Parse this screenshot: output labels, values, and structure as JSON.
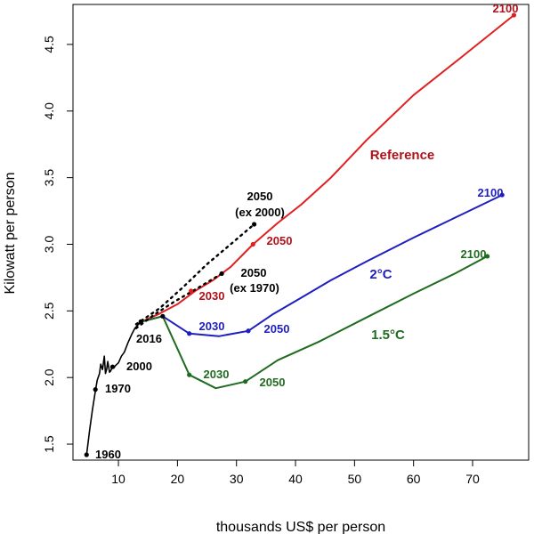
{
  "chart_data": {
    "type": "line",
    "xlabel": "thousands US$ per person",
    "ylabel": "Kilowatt per person",
    "xlim": [
      2.3,
      79.5
    ],
    "ylim": [
      1.38,
      4.8
    ],
    "xticks": [
      10,
      20,
      30,
      40,
      50,
      60,
      70
    ],
    "yticks": [
      1.5,
      2.0,
      2.5,
      3.0,
      3.5,
      4.0,
      4.5
    ],
    "xtick_labels": [
      "10",
      "20",
      "30",
      "40",
      "50",
      "60",
      "70"
    ],
    "ytick_labels": [
      "1.5",
      "2.0",
      "2.5",
      "3.0",
      "3.5",
      "4.0",
      "4.5"
    ],
    "grid": false,
    "legend": "none",
    "series": [
      {
        "key": "historical",
        "color": "#000000",
        "x": [
          4.6,
          5.1,
          5.6,
          6.1,
          6.4,
          6.8,
          7.0,
          7.3,
          7.6,
          7.8,
          8.0,
          8.2,
          8.5,
          8.7,
          9.0,
          9.2,
          9.5,
          10.0,
          10.5,
          11.0,
          11.6,
          12.2,
          12.8,
          13.4,
          14.0
        ],
        "y": [
          1.42,
          1.6,
          1.76,
          1.9,
          1.98,
          2.03,
          2.1,
          2.06,
          2.16,
          2.03,
          2.06,
          2.12,
          2.04,
          2.05,
          2.08,
          2.07,
          2.09,
          2.11,
          2.16,
          2.19,
          2.26,
          2.32,
          2.37,
          2.4,
          2.42
        ]
      },
      {
        "key": "reference",
        "name": "Reference",
        "color": "#e0201f",
        "x": [
          14.0,
          17.0,
          20.0,
          23.0,
          26.0,
          29.0,
          32.8,
          37.0,
          41.0,
          46.0,
          52.0,
          60.0,
          68.0,
          77.0
        ],
        "y": [
          2.42,
          2.48,
          2.55,
          2.65,
          2.73,
          2.83,
          3.0,
          3.16,
          3.3,
          3.5,
          3.78,
          4.12,
          4.4,
          4.72
        ]
      },
      {
        "key": "two_degree",
        "name": "2°C",
        "color": "#1f1fbf",
        "x": [
          14.0,
          17.5,
          22.0,
          27.0,
          32.0,
          36.0,
          41.0,
          46.0,
          52.0,
          60.0,
          68.0,
          75.0
        ],
        "y": [
          2.42,
          2.46,
          2.33,
          2.31,
          2.35,
          2.47,
          2.6,
          2.73,
          2.87,
          3.05,
          3.22,
          3.37
        ]
      },
      {
        "key": "one_point_five",
        "name": "1.5°C",
        "color": "#1f6b1f",
        "x": [
          14.0,
          17.5,
          22.0,
          26.5,
          31.5,
          37.0,
          44.0,
          52.0,
          60.0,
          67.0,
          72.5
        ],
        "y": [
          2.42,
          2.46,
          2.02,
          1.92,
          1.97,
          2.13,
          2.27,
          2.45,
          2.63,
          2.78,
          2.91
        ]
      },
      {
        "key": "ex2000",
        "color": "#000000",
        "dashed": true,
        "x": [
          13.0,
          17.0,
          21.0,
          25.0,
          29.0,
          33.0
        ],
        "y": [
          2.4,
          2.52,
          2.68,
          2.85,
          3.0,
          3.15
        ]
      },
      {
        "key": "ex1970",
        "color": "#000000",
        "dashed": true,
        "x": [
          13.0,
          16.0,
          19.5,
          23.0,
          27.5
        ],
        "y": [
          2.37,
          2.47,
          2.57,
          2.66,
          2.78
        ]
      }
    ],
    "points": [
      {
        "x": 4.6,
        "y": 1.42,
        "color": "#000000"
      },
      {
        "x": 6.1,
        "y": 1.91,
        "color": "#000000"
      },
      {
        "x": 9.0,
        "y": 2.08,
        "color": "#000000"
      },
      {
        "x": 13.8,
        "y": 2.42,
        "color": "#000000"
      },
      {
        "x": 22.3,
        "y": 2.65,
        "color": "#e0201f"
      },
      {
        "x": 32.8,
        "y": 3.0,
        "color": "#e0201f"
      },
      {
        "x": 77.0,
        "y": 4.72,
        "color": "#e0201f"
      },
      {
        "x": 22.0,
        "y": 2.33,
        "color": "#1f1fbf"
      },
      {
        "x": 32.0,
        "y": 2.35,
        "color": "#1f1fbf"
      },
      {
        "x": 75.0,
        "y": 3.37,
        "color": "#1f1fbf"
      },
      {
        "x": 22.0,
        "y": 2.02,
        "color": "#1f6b1f"
      },
      {
        "x": 31.5,
        "y": 1.97,
        "color": "#1f6b1f"
      },
      {
        "x": 72.5,
        "y": 2.91,
        "color": "#1f6b1f"
      },
      {
        "x": 33.0,
        "y": 3.15,
        "color": "#000000"
      },
      {
        "x": 27.5,
        "y": 2.78,
        "color": "#000000"
      },
      {
        "x": 17.5,
        "y": 2.46,
        "color": "#000000"
      }
    ],
    "annotations": [
      {
        "text": "1960",
        "color": "#000000"
      },
      {
        "text": "1970",
        "color": "#000000"
      },
      {
        "text": "2000",
        "color": "#000000"
      },
      {
        "text": "2016",
        "color": "#000000"
      },
      {
        "text": "2050",
        "color": "#000000"
      },
      {
        "text": "(ex 2000)",
        "color": "#000000"
      },
      {
        "text": "2050",
        "color": "#000000"
      },
      {
        "text": "(ex 1970)",
        "color": "#000000"
      },
      {
        "text": "2030",
        "color": "#b0121b"
      },
      {
        "text": "2050",
        "color": "#b0121b"
      },
      {
        "text": "2100",
        "color": "#b0121b"
      },
      {
        "text": "2030",
        "color": "#1f1fbf"
      },
      {
        "text": "2050",
        "color": "#1f1fbf"
      },
      {
        "text": "2100",
        "color": "#1f1fbf"
      },
      {
        "text": "2030",
        "color": "#1f6b1f"
      },
      {
        "text": "2050",
        "color": "#1f6b1f"
      },
      {
        "text": "2100",
        "color": "#1f6b1f"
      },
      {
        "text": "Reference",
        "color": "#b0121b"
      },
      {
        "text": "2°C",
        "color": "#1f1fbf"
      },
      {
        "text": "1.5°C",
        "color": "#1f6b1f"
      }
    ]
  }
}
